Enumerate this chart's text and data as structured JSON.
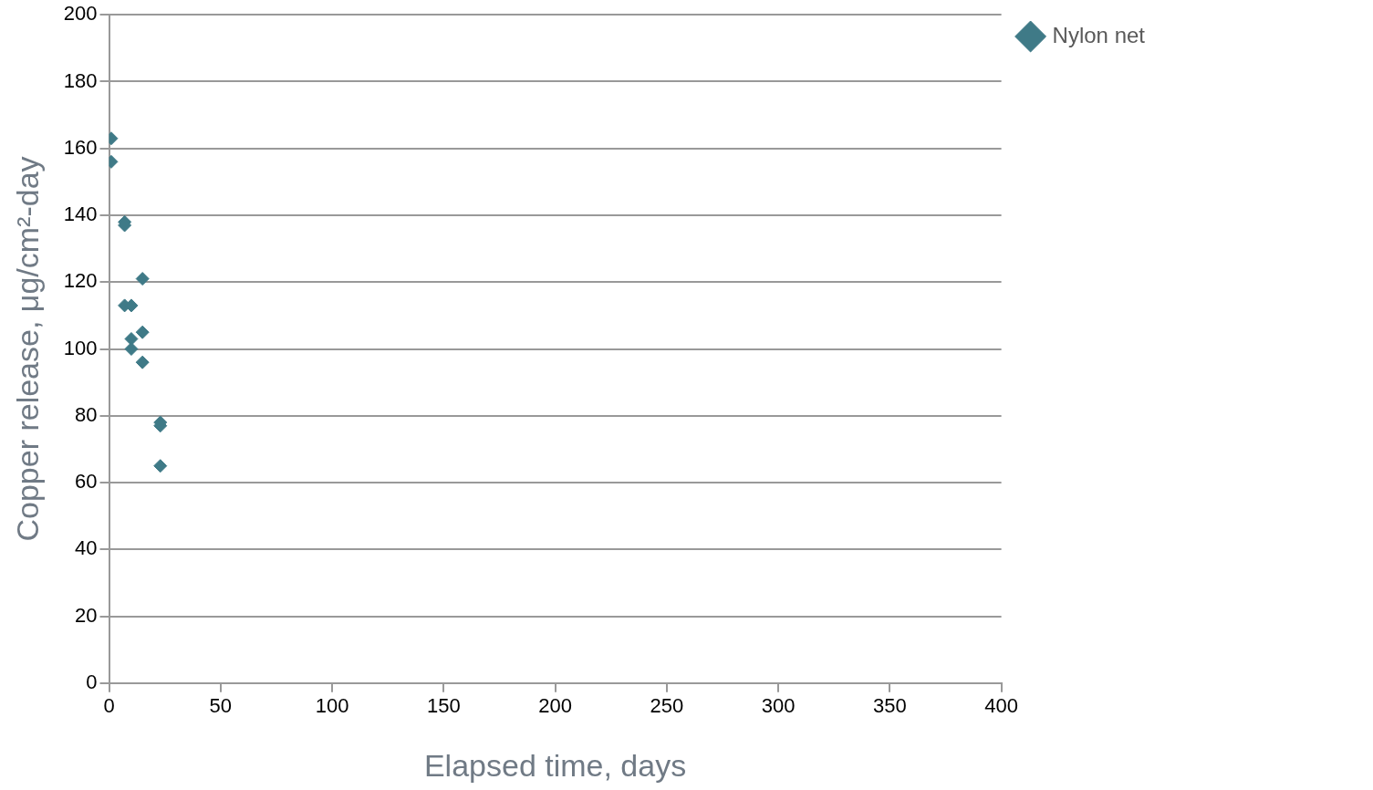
{
  "chart_data": {
    "type": "scatter",
    "xlabel": "Elapsed time, days",
    "ylabel": "Copper release, μg/cm²-day",
    "xlim": [
      0,
      400
    ],
    "xticks": [
      0,
      50,
      100,
      150,
      200,
      250,
      300,
      350,
      400
    ],
    "ylim": [
      0,
      200
    ],
    "yticks": [
      0,
      20,
      40,
      60,
      80,
      100,
      120,
      140,
      160,
      180,
      200
    ],
    "grid": "y",
    "legend": "top right",
    "marker": "diamond",
    "series": [
      {
        "name": "Nylon net",
        "color": "#3f7a87",
        "x": [
          1,
          1,
          7,
          7,
          7,
          10,
          10,
          10,
          15,
          15,
          15,
          23,
          23,
          23
        ],
        "values": [
          163,
          156,
          138,
          137,
          113,
          113,
          103,
          100,
          121,
          105,
          96,
          78,
          77,
          65
        ]
      }
    ]
  }
}
